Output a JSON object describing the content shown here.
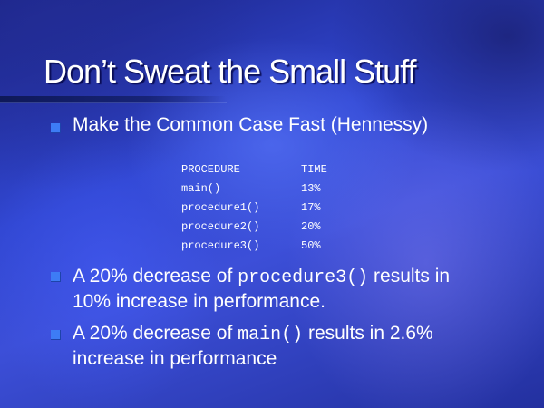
{
  "slide": {
    "title": "Don’t Sweat the Small Stuff",
    "bullet1": {
      "text": "Make the Common Case Fast (Hennessy)"
    },
    "table": {
      "headers": [
        "PROCEDURE",
        "TIME"
      ],
      "rows": [
        [
          "main()",
          "13%"
        ],
        [
          "procedure1()",
          "17%"
        ],
        [
          "procedure2()",
          "20%"
        ],
        [
          "procedure3()",
          "50%"
        ]
      ]
    },
    "bullet2": {
      "prefix": "A 20% decrease of",
      "code": "procedure3()",
      "suffix": "results in",
      "line2": "10% increase in performance."
    },
    "bullet3": {
      "prefix": "A 20% decrease of",
      "code": "main()",
      "suffix": "results in 2.6%",
      "line2": "increase in performance"
    }
  },
  "colors": {
    "background": "#3147d2",
    "bullet": "#3d7cf5",
    "text": "#ffffff"
  }
}
